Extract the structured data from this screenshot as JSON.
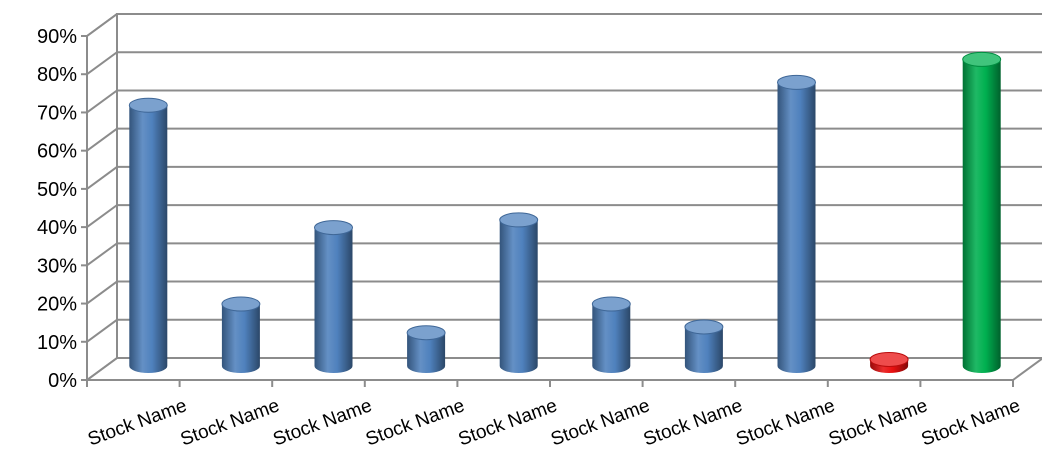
{
  "chart_data": {
    "type": "bar",
    "title": "",
    "xlabel": "",
    "ylabel": "",
    "ylim": [
      0,
      0.9
    ],
    "yticks": [
      "0%",
      "10%",
      "20%",
      "30%",
      "40%",
      "50%",
      "60%",
      "70%",
      "80%",
      "90%"
    ],
    "categories": [
      "Stock Name",
      "Stock Name",
      "Stock Name",
      "Stock Name",
      "Stock Name",
      "Stock Name",
      "Stock Name",
      "Stock Name",
      "Stock Name",
      "Stock Name"
    ],
    "values": [
      0.69,
      0.17,
      0.37,
      0.095,
      0.39,
      0.17,
      0.11,
      0.75,
      0.025,
      0.81
    ],
    "bar_colors": [
      "#4F81BD",
      "#4F81BD",
      "#4F81BD",
      "#4F81BD",
      "#4F81BD",
      "#4F81BD",
      "#4F81BD",
      "#4F81BD",
      "#E81010",
      "#00B050"
    ],
    "grid": true,
    "style": "3d-cylinder"
  }
}
